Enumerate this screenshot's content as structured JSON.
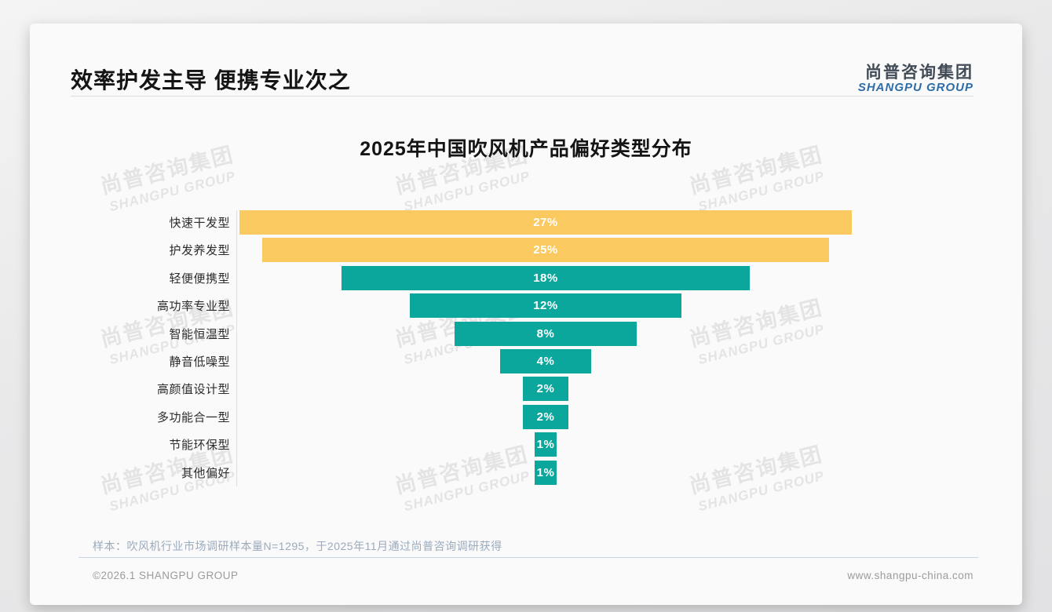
{
  "page": {
    "title": "效率护发主导 便携专业次之",
    "logo": {
      "cn": "尚普咨询集团",
      "en": "SHANGPU GROUP"
    },
    "watermark": {
      "cn": "尚普咨询集团",
      "en": "SHANGPU GROUP"
    },
    "footer": {
      "note": "样本：吹风机行业市场调研样本量N=1295，于2025年11月通过尚普咨询调研获得",
      "copyright": "©2026.1 SHANGPU GROUP",
      "website": "www.shangpu-china.com"
    }
  },
  "chart_data": {
    "type": "bar",
    "orientation": "horizontal-centered-funnel",
    "title": "2025年中国吹风机产品偏好类型分布",
    "categories": [
      "快速干发型",
      "护发养发型",
      "轻便便携型",
      "高功率专业型",
      "智能恒温型",
      "静音低噪型",
      "高颜值设计型",
      "多功能合一型",
      "节能环保型",
      "其他偏好"
    ],
    "values": [
      27,
      25,
      18,
      12,
      8,
      4,
      2,
      2,
      1,
      1
    ],
    "value_labels": [
      "27%",
      "25%",
      "18%",
      "12%",
      "8%",
      "4%",
      "2%",
      "2%",
      "1%",
      "1%"
    ],
    "bar_colors": [
      "#FAC95F",
      "#FAC95F",
      "#0BA79D",
      "#0BA79D",
      "#0BA79D",
      "#0BA79D",
      "#0BA79D",
      "#0BA79D",
      "#0BA79D",
      "#0BA79D"
    ],
    "colors": {
      "highlight_yellow": "#FAC95F",
      "teal": "#0BA79D"
    },
    "xlim": [
      0,
      27
    ],
    "legend": false,
    "grid": false,
    "value_label_position": "center-inside"
  }
}
